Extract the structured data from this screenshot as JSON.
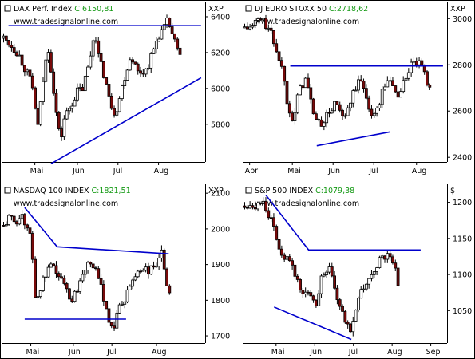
{
  "chart_data": [
    {
      "type": "candlestick",
      "title": "DAX Perf. Index",
      "value": "C:6150,81",
      "credit": "www.tradesignalonline.com",
      "unit": "XXP",
      "y_ticks": [
        6400,
        6200,
        6000,
        5800
      ],
      "y_tick_labels": [
        "6400",
        "6200",
        "6000",
        "5800"
      ],
      "ylim": [
        5590,
        6480
      ],
      "x_labels": [
        "Mai",
        "Jun",
        "Jul",
        "Aug"
      ],
      "x_label_pos": [
        0.16,
        0.37,
        0.57,
        0.77
      ],
      "series": [
        [
          0.0,
          6280
        ],
        [
          0.03,
          6250
        ],
        [
          0.07,
          6200
        ],
        [
          0.11,
          6100
        ],
        [
          0.14,
          6020
        ],
        [
          0.17,
          5780
        ],
        [
          0.2,
          6100
        ],
        [
          0.22,
          6230
        ],
        [
          0.24,
          6060
        ],
        [
          0.26,
          5860
        ],
        [
          0.28,
          5700
        ],
        [
          0.3,
          5840
        ],
        [
          0.33,
          5900
        ],
        [
          0.36,
          5980
        ],
        [
          0.39,
          6000
        ],
        [
          0.42,
          6130
        ],
        [
          0.45,
          6330
        ],
        [
          0.47,
          6160
        ],
        [
          0.5,
          6060
        ],
        [
          0.52,
          5940
        ],
        [
          0.55,
          5860
        ],
        [
          0.57,
          5940
        ],
        [
          0.6,
          6080
        ],
        [
          0.63,
          6190
        ],
        [
          0.66,
          6090
        ],
        [
          0.7,
          6100
        ],
        [
          0.73,
          6180
        ],
        [
          0.76,
          6290
        ],
        [
          0.79,
          6330
        ],
        [
          0.81,
          6380
        ],
        [
          0.84,
          6270
        ],
        [
          0.86,
          6200
        ],
        [
          0.88,
          6160
        ]
      ],
      "lines": [
        [
          [
            0.03,
            6350
          ],
          [
            0.98,
            6350
          ]
        ],
        [
          [
            0.24,
            5580
          ],
          [
            0.98,
            6060
          ]
        ]
      ]
    },
    {
      "type": "candlestick",
      "title": "DJ EURO STOXX 50",
      "value": "C:2718,62",
      "credit": "www.tradesignalonline.com",
      "unit": "XXP",
      "y_ticks": [
        3000,
        2800,
        2600,
        2400
      ],
      "y_tick_labels": [
        "3000",
        "2800",
        "2600",
        "2400"
      ],
      "ylim": [
        2380,
        3070
      ],
      "x_labels": [
        "Apr",
        "Mai",
        "Jun",
        "Jul",
        "Aug"
      ],
      "x_label_pos": [
        0.03,
        0.24,
        0.44,
        0.64,
        0.85
      ],
      "series": [
        [
          0.0,
          2960
        ],
        [
          0.03,
          2960
        ],
        [
          0.07,
          3000
        ],
        [
          0.1,
          2980
        ],
        [
          0.13,
          2930
        ],
        [
          0.15,
          2880
        ],
        [
          0.18,
          2800
        ],
        [
          0.21,
          2640
        ],
        [
          0.24,
          2560
        ],
        [
          0.27,
          2700
        ],
        [
          0.3,
          2740
        ],
        [
          0.33,
          2620
        ],
        [
          0.36,
          2540
        ],
        [
          0.39,
          2560
        ],
        [
          0.42,
          2600
        ],
        [
          0.45,
          2640
        ],
        [
          0.48,
          2560
        ],
        [
          0.51,
          2600
        ],
        [
          0.54,
          2700
        ],
        [
          0.57,
          2730
        ],
        [
          0.6,
          2660
        ],
        [
          0.63,
          2560
        ],
        [
          0.66,
          2640
        ],
        [
          0.69,
          2720
        ],
        [
          0.72,
          2730
        ],
        [
          0.75,
          2660
        ],
        [
          0.78,
          2720
        ],
        [
          0.81,
          2790
        ],
        [
          0.84,
          2810
        ],
        [
          0.86,
          2800
        ],
        [
          0.88,
          2760
        ],
        [
          0.9,
          2720
        ],
        [
          0.92,
          2718
        ]
      ],
      "lines": [
        [
          [
            0.23,
            2795
          ],
          [
            0.98,
            2795
          ]
        ],
        [
          [
            0.36,
            2450
          ],
          [
            0.72,
            2510
          ]
        ]
      ]
    },
    {
      "type": "candlestick",
      "title": "NASDAQ 100 INDEX",
      "value": "C:1821,51",
      "credit": "www.tradesignalonline.com",
      "unit": "XXP",
      "y_ticks": [
        2100,
        2000,
        1900,
        1800,
        1700
      ],
      "y_tick_labels": [
        "2100",
        "2000",
        "1900",
        "1800",
        "1700"
      ],
      "ylim": [
        1680,
        2125
      ],
      "x_labels": [
        "Mai",
        "Jun",
        "Jul",
        "Aug"
      ],
      "x_label_pos": [
        0.14,
        0.35,
        0.54,
        0.76
      ],
      "series": [
        [
          0.0,
          2010
        ],
        [
          0.03,
          2030
        ],
        [
          0.06,
          2020
        ],
        [
          0.09,
          2040
        ],
        [
          0.12,
          2000
        ],
        [
          0.14,
          1950
        ],
        [
          0.16,
          1780
        ],
        [
          0.18,
          1830
        ],
        [
          0.2,
          1860
        ],
        [
          0.23,
          1890
        ],
        [
          0.26,
          1880
        ],
        [
          0.29,
          1850
        ],
        [
          0.31,
          1830
        ],
        [
          0.34,
          1800
        ],
        [
          0.36,
          1830
        ],
        [
          0.39,
          1880
        ],
        [
          0.42,
          1920
        ],
        [
          0.44,
          1900
        ],
        [
          0.47,
          1850
        ],
        [
          0.5,
          1800
        ],
        [
          0.52,
          1740
        ],
        [
          0.54,
          1720
        ],
        [
          0.57,
          1780
        ],
        [
          0.6,
          1800
        ],
        [
          0.63,
          1850
        ],
        [
          0.66,
          1880
        ],
        [
          0.69,
          1890
        ],
        [
          0.72,
          1880
        ],
        [
          0.75,
          1900
        ],
        [
          0.78,
          1930
        ],
        [
          0.8,
          1850
        ],
        [
          0.82,
          1822
        ]
      ],
      "lines": [
        [
          [
            0.11,
            2060
          ],
          [
            0.27,
            1950
          ],
          [
            0.82,
            1930
          ]
        ],
        [
          [
            0.11,
            1747
          ],
          [
            0.61,
            1747
          ]
        ]
      ]
    },
    {
      "type": "candlestick",
      "title": "S&P 500 INDEX",
      "value": "C:1079,38",
      "credit": "www.tradesignalonline.com",
      "unit": "$",
      "y_ticks": [
        1200,
        1150,
        1100,
        1050
      ],
      "y_tick_labels": [
        "1200",
        "1150",
        "1100",
        "1050"
      ],
      "ylim": [
        1005,
        1225
      ],
      "x_labels": [
        "Mai",
        "Jun",
        "Jul",
        "Aug",
        "Sep"
      ],
      "x_label_pos": [
        0.16,
        0.35,
        0.54,
        0.73,
        0.92
      ],
      "series": [
        [
          0.0,
          1195
        ],
        [
          0.03,
          1200
        ],
        [
          0.06,
          1195
        ],
        [
          0.09,
          1205
        ],
        [
          0.12,
          1180
        ],
        [
          0.14,
          1165
        ],
        [
          0.16,
          1150
        ],
        [
          0.18,
          1120
        ],
        [
          0.2,
          1125
        ],
        [
          0.23,
          1110
        ],
        [
          0.26,
          1090
        ],
        [
          0.29,
          1070
        ],
        [
          0.32,
          1075
        ],
        [
          0.35,
          1060
        ],
        [
          0.38,
          1100
        ],
        [
          0.41,
          1110
        ],
        [
          0.44,
          1080
        ],
        [
          0.47,
          1050
        ],
        [
          0.5,
          1030
        ],
        [
          0.52,
          1025
        ],
        [
          0.55,
          1060
        ],
        [
          0.58,
          1080
        ],
        [
          0.61,
          1090
        ],
        [
          0.64,
          1110
        ],
        [
          0.67,
          1120
        ],
        [
          0.7,
          1125
        ],
        [
          0.72,
          1120
        ],
        [
          0.74,
          1110
        ],
        [
          0.76,
          1080
        ]
      ],
      "lines": [
        [
          [
            0.11,
            1210
          ],
          [
            0.32,
            1134
          ],
          [
            0.87,
            1134
          ]
        ],
        [
          [
            0.15,
            1055
          ],
          [
            0.53,
            1010
          ]
        ]
      ]
    }
  ]
}
